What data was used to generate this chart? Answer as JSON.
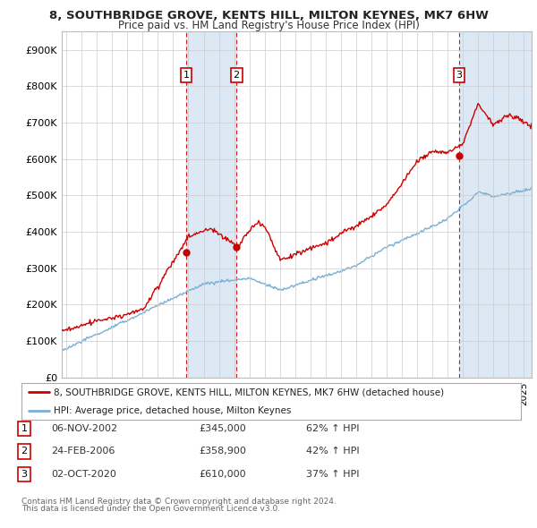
{
  "title1": "8, SOUTHBRIDGE GROVE, KENTS HILL, MILTON KEYNES, MK7 6HW",
  "title2": "Price paid vs. HM Land Registry's House Price Index (HPI)",
  "ylabel_ticks": [
    "£0",
    "£100K",
    "£200K",
    "£300K",
    "£400K",
    "£500K",
    "£600K",
    "£700K",
    "£800K",
    "£900K"
  ],
  "ytick_values": [
    0,
    100000,
    200000,
    300000,
    400000,
    500000,
    600000,
    700000,
    800000,
    900000
  ],
  "ylim": [
    0,
    950000
  ],
  "xlim_start": 1994.7,
  "xlim_end": 2025.5,
  "sale_color": "#cc0000",
  "hpi_color": "#7ab0d4",
  "shade_color": "#dce9f5",
  "sale_label": "8, SOUTHBRIDGE GROVE, KENTS HILL, MILTON KEYNES, MK7 6HW (detached house)",
  "hpi_label": "HPI: Average price, detached house, Milton Keynes",
  "transactions": [
    {
      "num": 1,
      "date": "06-NOV-2002",
      "price": 345000,
      "pct": "62%",
      "direction": "↑",
      "x": 2002.85
    },
    {
      "num": 2,
      "date": "24-FEB-2006",
      "price": 358900,
      "pct": "42%",
      "direction": "↑",
      "x": 2006.15
    },
    {
      "num": 3,
      "date": "02-OCT-2020",
      "price": 610000,
      "pct": "37%",
      "direction": "↑",
      "x": 2020.75
    }
  ],
  "footer1": "Contains HM Land Registry data © Crown copyright and database right 2024.",
  "footer2": "This data is licensed under the Open Government Licence v3.0.",
  "background_color": "#ffffff",
  "plot_bg_color": "#ffffff",
  "grid_color": "#cccccc"
}
